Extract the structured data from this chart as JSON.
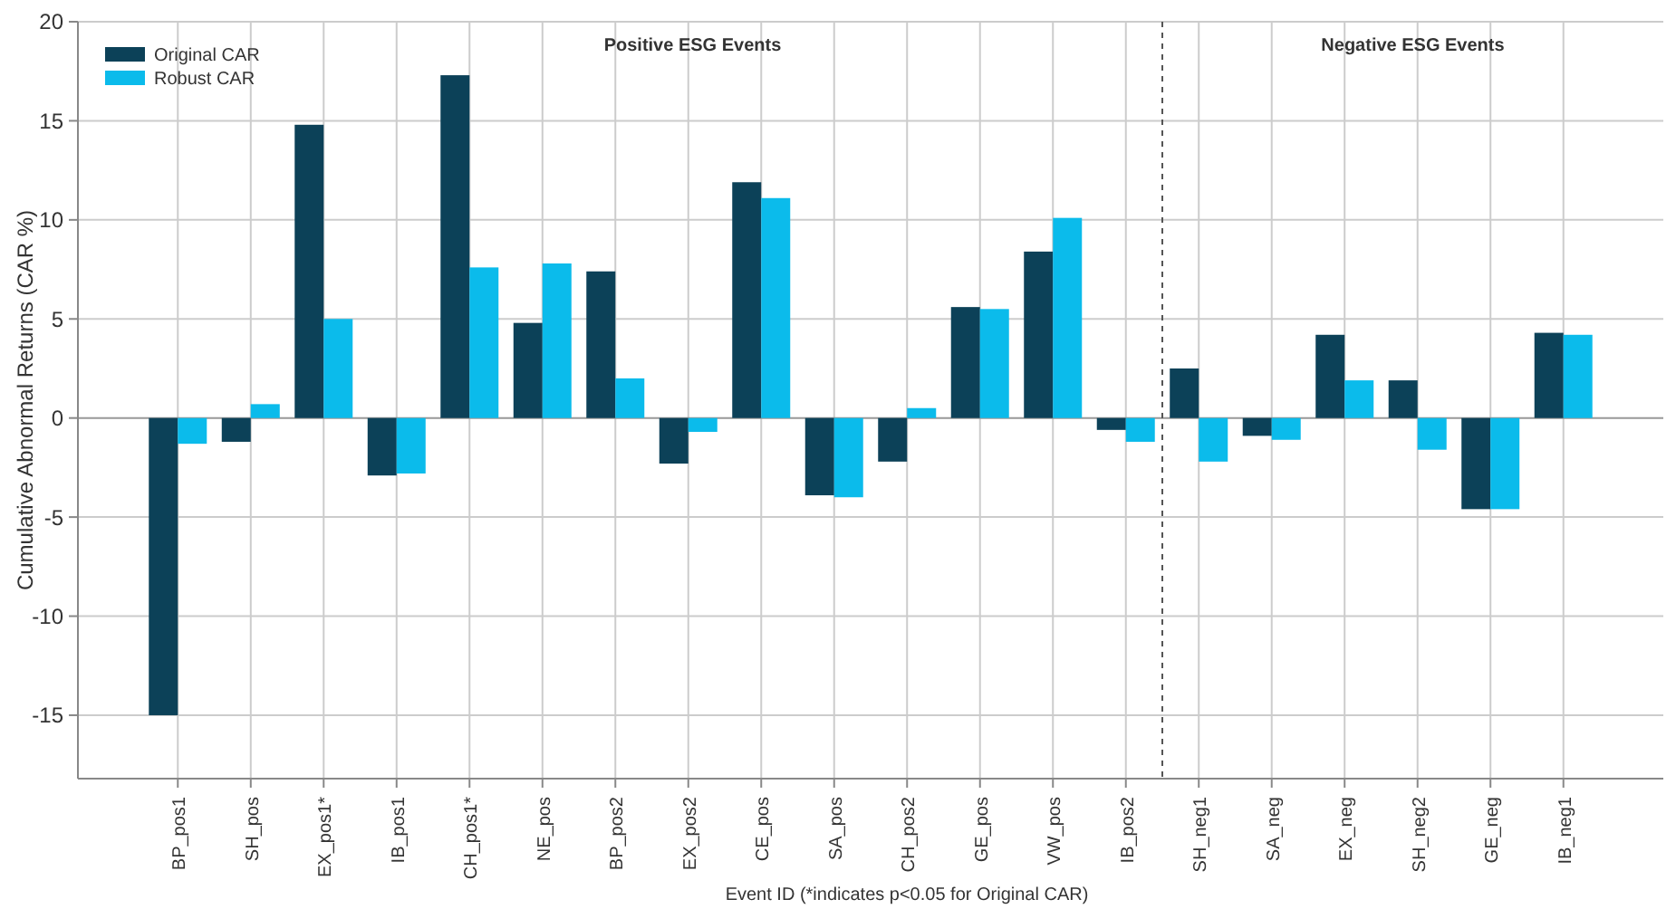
{
  "chart_data": {
    "type": "bar",
    "xlabel": "Event ID (*indicates p<0.05 for Original CAR)",
    "ylabel": "Cumulative Abnormal Returns (CAR %)",
    "categories": [
      "BP_pos1",
      "SH_pos",
      "EX_pos1*",
      "IB_pos1",
      "CH_pos1*",
      "NE_pos",
      "BP_pos2",
      "EX_pos2",
      "CE_pos",
      "SA_pos",
      "CH_pos2",
      "GE_pos",
      "VW_pos",
      "IB_pos2",
      "SH_neg1",
      "SA_neg",
      "EX_neg",
      "SH_neg2",
      "GE_neg",
      "IB_neg1"
    ],
    "series": [
      {
        "name": "Original CAR",
        "color": "#0c4158",
        "values": [
          -15.0,
          -1.2,
          14.8,
          -2.9,
          17.3,
          4.8,
          7.4,
          -2.3,
          11.9,
          -3.9,
          -2.2,
          5.6,
          8.4,
          -0.6,
          2.5,
          -0.9,
          4.2,
          1.9,
          -4.6,
          4.3
        ]
      },
      {
        "name": "Robust CAR",
        "color": "#0bbbeb",
        "values": [
          -1.3,
          0.7,
          5.0,
          -2.8,
          7.6,
          7.8,
          2.0,
          -0.7,
          11.1,
          -4.0,
          0.5,
          5.5,
          10.1,
          -1.2,
          -2.2,
          -1.1,
          1.9,
          -1.6,
          -4.6,
          4.2
        ]
      }
    ],
    "ylim": [
      -18.2,
      20
    ],
    "yticks": [
      -15,
      -10,
      -5,
      0,
      5,
      10,
      15,
      20
    ],
    "grid": true,
    "legend": "top left",
    "annotations": [
      "Positive ESG Events",
      "Negative ESG Events"
    ]
  }
}
